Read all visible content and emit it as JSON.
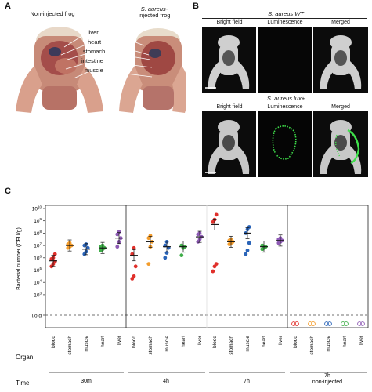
{
  "panel_a": {
    "letter": "A",
    "left_title": "Non-injected frog",
    "right_title_line1": "S. aureus-",
    "right_title_line2": "injected frog",
    "organs": [
      "liver",
      "heart",
      "stomach",
      "intestine",
      "muscle"
    ]
  },
  "panel_b": {
    "letter": "B",
    "top_group_title": "S. aureus WT",
    "bottom_group_title": "S. aureus lux+",
    "columns": [
      "Bright field",
      "Luminescence",
      "Merged"
    ]
  },
  "panel_c": {
    "letter": "C",
    "organ_label": "Organ",
    "time_label": "Time",
    "time_groups": [
      "30m",
      "4h",
      "7h",
      "7h",
      "non-injected"
    ],
    "organs": [
      "blood",
      "stomach",
      "muscle",
      "heart",
      "liver"
    ],
    "colors": {
      "blood": "#e0302b",
      "stomach": "#f39c2b",
      "muscle": "#2a64b8",
      "heart": "#3fae49",
      "liver": "#8e5bb5"
    }
  },
  "chart_data": {
    "type": "scatter",
    "ylabel": "Bacterial number (CFU/g)",
    "yscale": "log",
    "ylim": [
      100000.0,
      10000000000.0
    ],
    "yticks": [
      "10^10",
      "10^9",
      "10^8",
      "10^7",
      "10^6",
      "10^5",
      "10^4",
      "10^3",
      "l.o.d"
    ],
    "lod_line": "dashed",
    "groups": [
      {
        "time": "30m",
        "series": [
          {
            "organ": "blood",
            "mean_log": 5.75,
            "values_log": [
              5.3,
              5.5,
              5.7,
              5.9,
              6.0,
              6.3
            ]
          },
          {
            "organ": "stomach",
            "mean_log": 7.0,
            "values_log": [
              6.8,
              6.9,
              7.0,
              7.1,
              7.2
            ]
          },
          {
            "organ": "muscle",
            "mean_log": 6.7,
            "values_log": [
              6.3,
              6.5,
              6.8,
              7.0,
              7.1
            ]
          },
          {
            "organ": "heart",
            "mean_log": 6.8,
            "values_log": [
              6.6,
              6.7,
              6.8,
              6.9,
              7.0
            ]
          },
          {
            "organ": "liver",
            "mean_log": 7.6,
            "values_log": [
              6.9,
              7.3,
              7.6,
              7.9,
              8.1
            ]
          }
        ]
      },
      {
        "time": "4h",
        "series": [
          {
            "organ": "blood",
            "mean_log": 6.2,
            "values_log": [
              4.3,
              4.5,
              5.3,
              6.3,
              6.8
            ]
          },
          {
            "organ": "stomach",
            "mean_log": 7.3,
            "values_log": [
              5.5,
              6.9,
              7.3,
              7.6,
              7.8
            ]
          },
          {
            "organ": "muscle",
            "mean_log": 6.9,
            "values_log": [
              6.0,
              6.4,
              6.8,
              7.0,
              7.3
            ]
          },
          {
            "organ": "heart",
            "mean_log": 6.9,
            "values_log": [
              6.2,
              6.8,
              6.9,
              7.0
            ]
          },
          {
            "organ": "liver",
            "mean_log": 7.7,
            "values_log": [
              7.3,
              7.5,
              7.7,
              7.9,
              8.0
            ]
          }
        ]
      },
      {
        "time": "7h",
        "series": [
          {
            "organ": "blood",
            "mean_log": 8.7,
            "values_log": [
              4.9,
              5.3,
              5.5,
              8.9,
              9.1,
              9.5
            ]
          },
          {
            "organ": "stomach",
            "mean_log": 7.3,
            "values_log": [
              7.1,
              7.2,
              7.3,
              7.4,
              7.5
            ]
          },
          {
            "organ": "muscle",
            "mean_log": 8.0,
            "values_log": [
              6.3,
              6.6,
              7.2,
              8.0,
              8.3,
              8.5
            ]
          },
          {
            "organ": "heart",
            "mean_log": 6.9,
            "values_log": [
              6.7,
              6.8,
              6.9,
              7.0
            ]
          },
          {
            "organ": "liver",
            "mean_log": 7.4,
            "values_log": [
              7.2,
              7.3,
              7.4,
              7.5,
              7.6
            ]
          }
        ]
      },
      {
        "time": "7h non-injected",
        "series": [
          {
            "organ": "blood",
            "values": [
              "l.o.d"
            ]
          },
          {
            "organ": "stomach",
            "values": [
              "l.o.d"
            ]
          },
          {
            "organ": "muscle",
            "values": [
              "l.o.d"
            ]
          },
          {
            "organ": "heart",
            "values": [
              "l.o.d"
            ]
          },
          {
            "organ": "liver",
            "values": [
              "l.o.d"
            ]
          }
        ]
      }
    ]
  }
}
